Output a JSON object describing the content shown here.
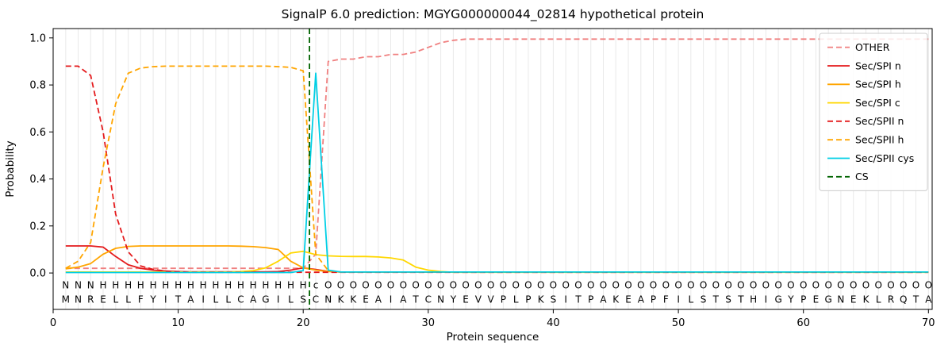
{
  "title": "SignalP 6.0 prediction: MGYG000000044_02814 hypothetical protein",
  "chart_data": {
    "type": "line",
    "xlabel": "Protein sequence",
    "ylabel": "Probability",
    "xlim": [
      0,
      70.3
    ],
    "ylim": [
      0,
      1
    ],
    "xticks": [
      0,
      10,
      20,
      30,
      40,
      50,
      60,
      70
    ],
    "yticks": [
      0,
      0.2,
      0.4,
      0.6,
      0.8,
      1
    ],
    "grid": "vertical line per residue",
    "legend_position": "upper right",
    "cs_position": 20.5,
    "sequence": "MNRELLFYITAILLCAGILSCNKKEAIATCNYEVVPLPKSITPAKEAPFILSTSTHIGYPEGNEKLRQTA",
    "region_labels": "NNNHHHHHHHHHHHHHHHHHcOOOOOOOOOOOOOOOOOOOOOOOOOOOOOOOOOOOOOOOOOOOOOOOOO",
    "region_colors": {
      "N": "#e41a1c",
      "H": "#ffa500",
      "c": "#00cfe5",
      "O": "#999999"
    },
    "colors": {
      "grid": "#e9e9e9",
      "axis": "#000000",
      "sequence_text": "#111111"
    },
    "series": [
      {
        "name": "OTHER",
        "color": "#f08080",
        "dash": true,
        "values": [
          0.02,
          0.02,
          0.02,
          0.02,
          0.02,
          0.02,
          0.02,
          0.02,
          0.02,
          0.02,
          0.02,
          0.02,
          0.02,
          0.02,
          0.02,
          0.02,
          0.02,
          0.02,
          0.02,
          0.02,
          0.08,
          0.9,
          0.91,
          0.91,
          0.92,
          0.92,
          0.93,
          0.93,
          0.94,
          0.96,
          0.98,
          0.99,
          0.995,
          0.995,
          0.995,
          0.995,
          0.995,
          0.995,
          0.995,
          0.995,
          0.995,
          0.995,
          0.995,
          0.995,
          0.995,
          0.995,
          0.995,
          0.995,
          0.995,
          0.995,
          0.995,
          0.995,
          0.995,
          0.995,
          0.995,
          0.995,
          0.995,
          0.995,
          0.995,
          0.995,
          0.995,
          0.995,
          0.995,
          0.995,
          0.995,
          0.995,
          0.995,
          0.995,
          0.995,
          0.995
        ]
      },
      {
        "name": "Sec/SPI n",
        "color": "#e41a1c",
        "dash": false,
        "values": [
          0.115,
          0.115,
          0.115,
          0.11,
          0.07,
          0.035,
          0.02,
          0.012,
          0.008,
          0.006,
          0.005,
          0.005,
          0.005,
          0.005,
          0.005,
          0.005,
          0.005,
          0.006,
          0.012,
          0.022,
          0.015,
          0.007,
          0.004,
          0.004,
          0.004,
          0.004,
          0.004,
          0.004,
          0.004,
          0.004,
          0.004,
          0.004,
          0.004,
          0.004,
          0.004,
          0.004,
          0.004,
          0.004,
          0.004,
          0.004,
          0.004,
          0.004,
          0.004,
          0.004,
          0.004,
          0.004,
          0.004,
          0.004,
          0.004,
          0.004,
          0.004,
          0.004,
          0.004,
          0.004,
          0.004,
          0.004,
          0.004,
          0.004,
          0.004,
          0.004,
          0.004,
          0.004,
          0.004,
          0.004,
          0.004,
          0.004,
          0.004,
          0.004,
          0.004,
          0.004
        ]
      },
      {
        "name": "Sec/SPI h",
        "color": "#ffa500",
        "dash": false,
        "values": [
          0.018,
          0.025,
          0.04,
          0.08,
          0.105,
          0.113,
          0.115,
          0.115,
          0.115,
          0.115,
          0.115,
          0.115,
          0.115,
          0.115,
          0.114,
          0.112,
          0.108,
          0.1,
          0.05,
          0.022,
          0.012,
          0.006,
          0.004,
          0.004,
          0.004,
          0.004,
          0.004,
          0.004,
          0.004,
          0.004,
          0.004,
          0.004,
          0.004,
          0.004,
          0.004,
          0.004,
          0.004,
          0.004,
          0.004,
          0.004,
          0.004,
          0.004,
          0.004,
          0.004,
          0.004,
          0.004,
          0.004,
          0.004,
          0.004,
          0.004,
          0.004,
          0.004,
          0.004,
          0.004,
          0.004,
          0.004,
          0.004,
          0.004,
          0.004,
          0.004,
          0.004,
          0.004,
          0.004,
          0.004,
          0.004,
          0.004,
          0.004,
          0.004,
          0.004,
          0.004
        ]
      },
      {
        "name": "Sec/SPI c",
        "color": "#ffd700",
        "dash": false,
        "values": [
          0.004,
          0.004,
          0.004,
          0.004,
          0.004,
          0.004,
          0.004,
          0.004,
          0.004,
          0.004,
          0.004,
          0.004,
          0.004,
          0.004,
          0.006,
          0.01,
          0.022,
          0.05,
          0.085,
          0.092,
          0.078,
          0.073,
          0.071,
          0.07,
          0.07,
          0.068,
          0.064,
          0.055,
          0.025,
          0.012,
          0.006,
          0.003,
          0.003,
          0.003,
          0.003,
          0.003,
          0.003,
          0.003,
          0.003,
          0.003,
          0.003,
          0.003,
          0.003,
          0.003,
          0.003,
          0.003,
          0.003,
          0.003,
          0.003,
          0.003,
          0.003,
          0.003,
          0.003,
          0.003,
          0.003,
          0.003,
          0.003,
          0.003,
          0.003,
          0.003,
          0.003,
          0.003,
          0.003,
          0.003,
          0.003,
          0.003,
          0.003,
          0.003,
          0.003,
          0.003
        ]
      },
      {
        "name": "Sec/SPII n",
        "color": "#e41a1c",
        "dash": true,
        "values": [
          0.88,
          0.88,
          0.84,
          0.6,
          0.25,
          0.09,
          0.03,
          0.015,
          0.008,
          0.005,
          0.003,
          0.003,
          0.003,
          0.003,
          0.003,
          0.003,
          0.003,
          0.003,
          0.003,
          0.003,
          0.003,
          0.003,
          0.003,
          0.003,
          0.003,
          0.003,
          0.003,
          0.003,
          0.003,
          0.003,
          0.003,
          0.003,
          0.003,
          0.003,
          0.003,
          0.003,
          0.003,
          0.003,
          0.003,
          0.003,
          0.003,
          0.003,
          0.003,
          0.003,
          0.003,
          0.003,
          0.003,
          0.003,
          0.003,
          0.003,
          0.003,
          0.003,
          0.003,
          0.003,
          0.003,
          0.003,
          0.003,
          0.003,
          0.003,
          0.003,
          0.003,
          0.003,
          0.003,
          0.003,
          0.003,
          0.003,
          0.003,
          0.003,
          0.003,
          0.003
        ]
      },
      {
        "name": "Sec/SPII h",
        "color": "#ffa500",
        "dash": true,
        "values": [
          0.02,
          0.05,
          0.13,
          0.45,
          0.72,
          0.85,
          0.872,
          0.878,
          0.88,
          0.88,
          0.88,
          0.88,
          0.88,
          0.88,
          0.88,
          0.88,
          0.88,
          0.878,
          0.875,
          0.86,
          0.08,
          0.01,
          0.004,
          0.004,
          0.004,
          0.004,
          0.004,
          0.004,
          0.004,
          0.004,
          0.004,
          0.004,
          0.004,
          0.004,
          0.004,
          0.004,
          0.004,
          0.004,
          0.004,
          0.004,
          0.004,
          0.004,
          0.004,
          0.004,
          0.004,
          0.004,
          0.004,
          0.004,
          0.004,
          0.004,
          0.004,
          0.004,
          0.004,
          0.004,
          0.004,
          0.004,
          0.004,
          0.004,
          0.004,
          0.004,
          0.004,
          0.004,
          0.004,
          0.004,
          0.004,
          0.004,
          0.004,
          0.004,
          0.004,
          0.004
        ]
      },
      {
        "name": "Sec/SPII cys",
        "color": "#00cfe5",
        "dash": false,
        "values": [
          0.002,
          0.002,
          0.002,
          0.002,
          0.002,
          0.002,
          0.002,
          0.002,
          0.002,
          0.002,
          0.002,
          0.002,
          0.002,
          0.002,
          0.002,
          0.002,
          0.002,
          0.002,
          0.002,
          0.01,
          0.85,
          0.012,
          0.004,
          0.004,
          0.004,
          0.004,
          0.004,
          0.004,
          0.004,
          0.004,
          0.004,
          0.004,
          0.004,
          0.004,
          0.004,
          0.004,
          0.004,
          0.004,
          0.004,
          0.004,
          0.004,
          0.004,
          0.004,
          0.004,
          0.004,
          0.004,
          0.004,
          0.004,
          0.004,
          0.004,
          0.004,
          0.004,
          0.004,
          0.004,
          0.004,
          0.004,
          0.004,
          0.004,
          0.004,
          0.004,
          0.004,
          0.004,
          0.004,
          0.004,
          0.004,
          0.004,
          0.004,
          0.004,
          0.004,
          0.004
        ]
      },
      {
        "name": "CS",
        "color": "#006400",
        "dash": true,
        "vline": 20.5
      }
    ]
  }
}
